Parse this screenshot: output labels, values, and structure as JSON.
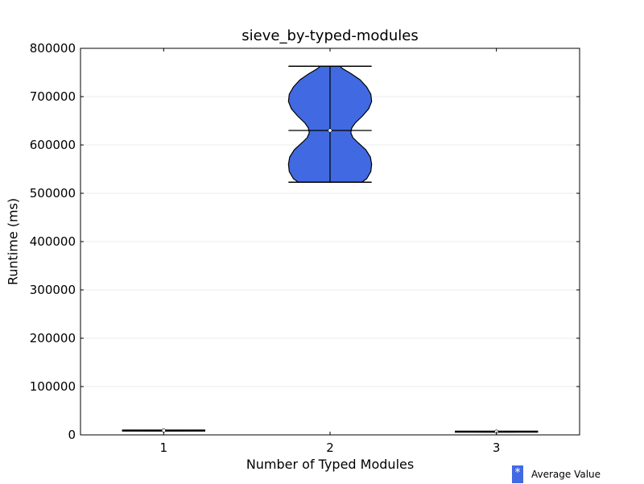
{
  "title": "sieve_by-typed-modules",
  "xlabel": "Number of Typed Modules",
  "ylabel": "Runtime (ms)",
  "legend": {
    "marker": "*",
    "label": "Average Value",
    "color": "#4169e1"
  },
  "chart_data": {
    "type": "violin",
    "title": "sieve_by-typed-modules",
    "xlabel": "Number of Typed Modules",
    "ylabel": "Runtime (ms)",
    "ylim": [
      0,
      800000
    ],
    "yticks": [
      0,
      100000,
      200000,
      300000,
      400000,
      500000,
      600000,
      700000,
      800000
    ],
    "categories": [
      "1",
      "2",
      "3"
    ],
    "violins": [
      {
        "category": "1",
        "min": 8200,
        "max": 9800,
        "mean": 9000,
        "profile": [
          [
            8200,
            0.3
          ],
          [
            8600,
            0.7
          ],
          [
            9000,
            1.0
          ],
          [
            9400,
            0.7
          ],
          [
            9800,
            0.3
          ]
        ]
      },
      {
        "category": "2",
        "min": 523000,
        "max": 763000,
        "mean": 630000,
        "profile": [
          [
            523000,
            0.76
          ],
          [
            530000,
            0.88
          ],
          [
            545000,
            0.98
          ],
          [
            560000,
            1.0
          ],
          [
            575000,
            0.97
          ],
          [
            590000,
            0.86
          ],
          [
            605000,
            0.67
          ],
          [
            615000,
            0.55
          ],
          [
            625000,
            0.5
          ],
          [
            635000,
            0.52
          ],
          [
            645000,
            0.6
          ],
          [
            660000,
            0.78
          ],
          [
            675000,
            0.93
          ],
          [
            690000,
            1.0
          ],
          [
            705000,
            0.98
          ],
          [
            720000,
            0.88
          ],
          [
            735000,
            0.72
          ],
          [
            748000,
            0.5
          ],
          [
            758000,
            0.3
          ],
          [
            763000,
            0.24
          ]
        ]
      },
      {
        "category": "3",
        "min": 5800,
        "max": 7400,
        "mean": 6600,
        "profile": [
          [
            5800,
            0.3
          ],
          [
            6200,
            0.7
          ],
          [
            6600,
            1.0
          ],
          [
            7000,
            0.7
          ],
          [
            7400,
            0.3
          ]
        ]
      }
    ],
    "fill_color": "#4169e1",
    "grid": "horizontal",
    "legend_position": "bottom-right"
  }
}
